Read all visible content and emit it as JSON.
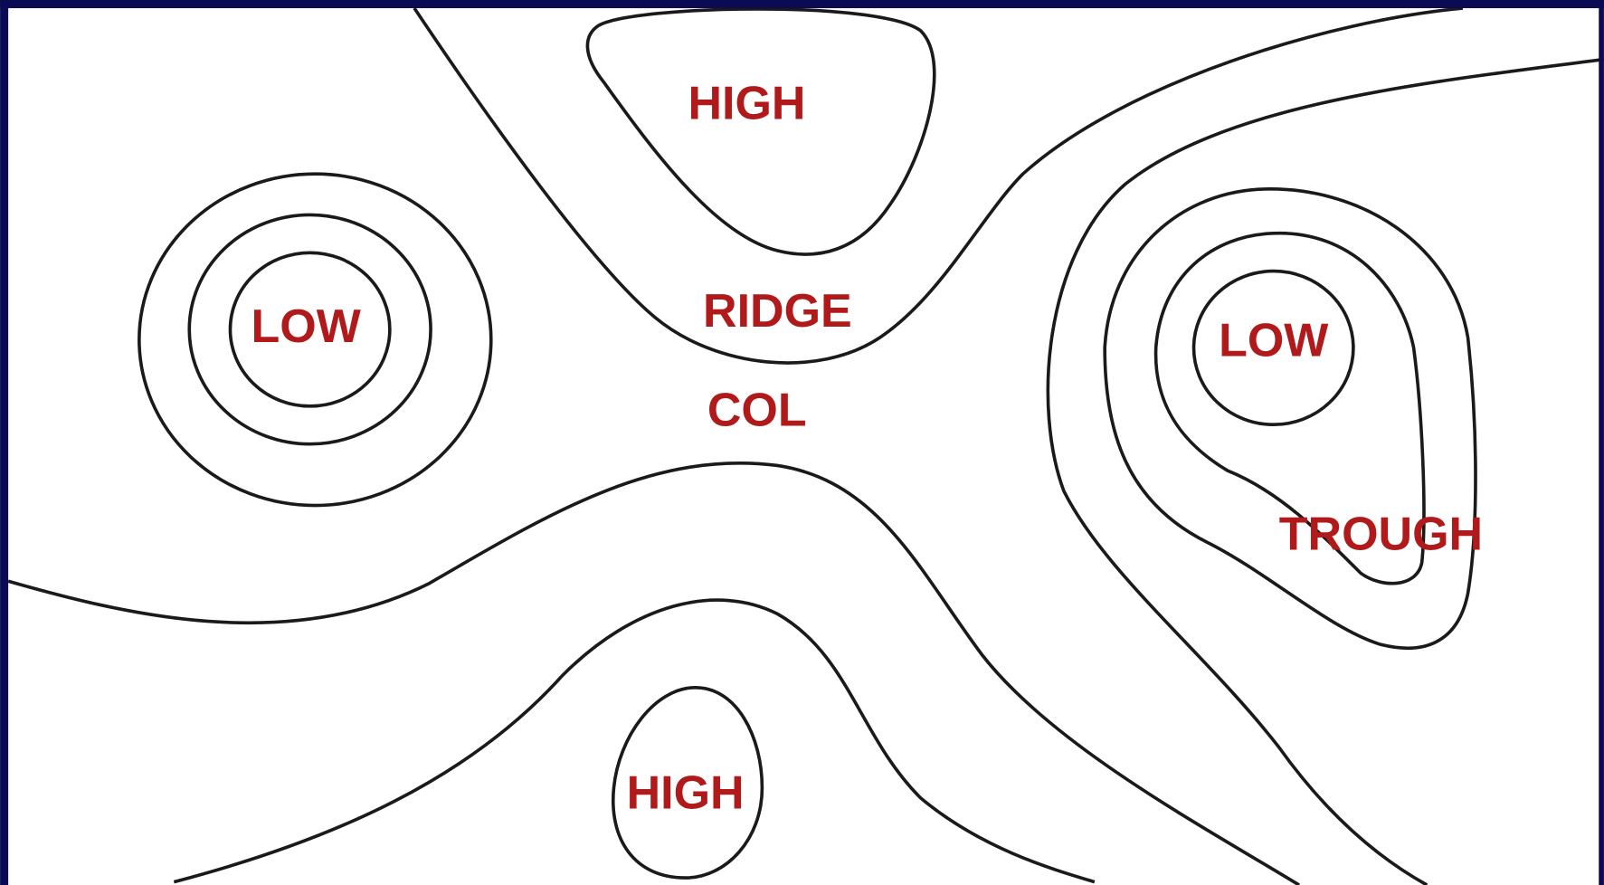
{
  "labels": [
    "HIGH",
    "LOW",
    "RIDGE",
    "COL",
    "LOW",
    "TROUGH",
    "HIGH"
  ]
}
